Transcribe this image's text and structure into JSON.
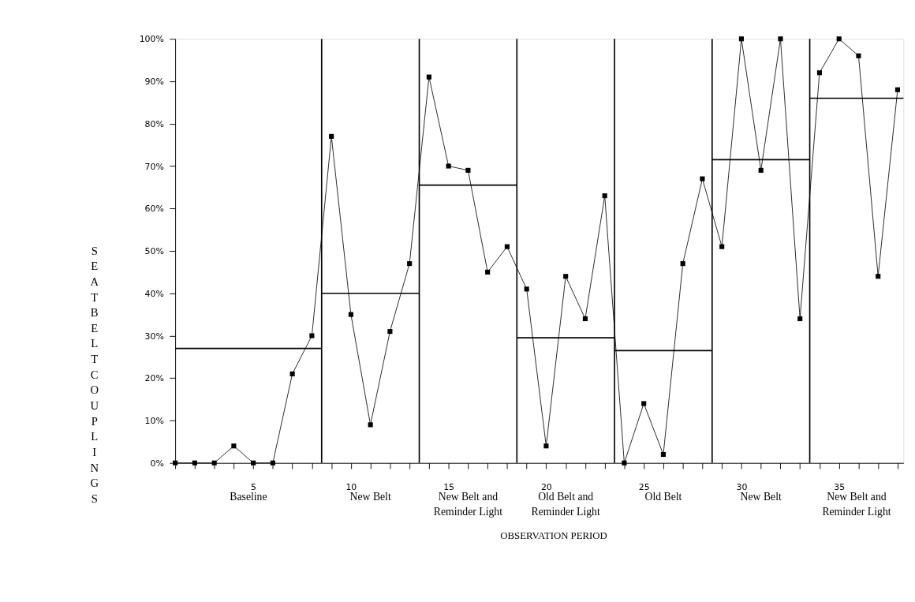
{
  "chart_data": {
    "type": "line",
    "xlabel": "OBSERVATION PERIOD",
    "ylabel": "SEATBELT COUPLINGS",
    "xlim": [
      1,
      38.3
    ],
    "xticks": [
      {
        "value": 1,
        "label": null
      },
      {
        "value": 2,
        "label": null
      },
      {
        "value": 3,
        "label": null
      },
      {
        "value": 4,
        "label": null
      },
      5,
      {
        "value": 6,
        "label": null
      },
      {
        "value": 7,
        "label": null
      },
      {
        "value": 8,
        "label": null
      },
      {
        "value": 9,
        "label": null
      },
      10,
      {
        "value": 11,
        "label": null
      },
      {
        "value": 12,
        "label": null
      },
      {
        "value": 13,
        "label": null
      },
      {
        "value": 14,
        "label": null
      },
      15,
      {
        "value": 16,
        "label": null
      },
      {
        "value": 17,
        "label": null
      },
      {
        "value": 18,
        "label": null
      },
      {
        "value": 19,
        "label": null
      },
      20,
      {
        "value": 21,
        "label": null
      },
      {
        "value": 22,
        "label": null
      },
      {
        "value": 23,
        "label": null
      },
      {
        "value": 24,
        "label": null
      },
      25,
      {
        "value": 26,
        "label": null
      },
      {
        "value": 27,
        "label": null
      },
      {
        "value": 28,
        "label": null
      },
      {
        "value": 29,
        "label": null
      },
      30,
      {
        "value": 31,
        "label": null
      },
      {
        "value": 32,
        "label": null
      },
      {
        "value": 33,
        "label": null
      },
      {
        "value": 34,
        "label": null
      },
      35,
      {
        "value": 36,
        "label": null
      },
      {
        "value": 37,
        "label": null
      },
      {
        "value": 38,
        "label": null
      }
    ],
    "ylim": [
      0,
      100
    ],
    "yticks": [
      {
        "value": 0,
        "label": "0%"
      },
      {
        "value": 10,
        "label": "10%"
      },
      {
        "value": 20,
        "label": "20%"
      },
      {
        "value": 30,
        "label": "30%"
      },
      {
        "value": 40,
        "label": "40%"
      },
      {
        "value": 50,
        "label": "50%"
      },
      {
        "value": 60,
        "label": "60%"
      },
      {
        "value": 70,
        "label": "70%"
      },
      {
        "value": 80,
        "label": "80%"
      },
      {
        "value": 90,
        "label": "90%"
      },
      {
        "value": 100,
        "label": "100%"
      }
    ],
    "grid": false,
    "x": [
      1,
      2,
      3,
      4,
      5,
      6,
      7,
      8,
      9,
      10,
      11,
      12,
      13,
      14,
      15,
      16,
      17,
      18,
      19,
      20,
      21,
      22,
      23,
      24,
      25,
      26,
      27,
      28,
      29,
      30,
      31,
      32,
      33,
      34,
      35,
      36,
      37,
      38
    ],
    "series": [
      {
        "color": "#000000",
        "marker": "square",
        "values": [
          0,
          0,
          0,
          4,
          0,
          0,
          21,
          30,
          77,
          35,
          9,
          31,
          47,
          91,
          70,
          69,
          45,
          51,
          41,
          4,
          44,
          34,
          63,
          0,
          14,
          2,
          47,
          67,
          51,
          100,
          69,
          100,
          34,
          92,
          100,
          96,
          44,
          88
        ]
      },
      {
        "type": "line",
        "color": "#000000",
        "marker": "none",
        "x": [
          1,
          8.5
        ],
        "values": [
          27,
          27
        ]
      },
      {
        "type": "line",
        "color": "#000000",
        "marker": "none",
        "x": [
          8.5,
          13.5
        ],
        "values": [
          40,
          40
        ]
      },
      {
        "type": "line",
        "color": "#000000",
        "marker": "none",
        "x": [
          13.5,
          18.5
        ],
        "values": [
          65.5,
          65.5
        ]
      },
      {
        "type": "line",
        "color": "#000000",
        "marker": "none",
        "x": [
          18.5,
          23.5
        ],
        "values": [
          29.5,
          29.5
        ]
      },
      {
        "type": "line",
        "color": "#000000",
        "marker": "none",
        "x": [
          23.5,
          28.5
        ],
        "values": [
          26.5,
          26.5
        ]
      },
      {
        "type": "line",
        "color": "#000000",
        "marker": "none",
        "x": [
          28.5,
          33.5
        ],
        "values": [
          71.5,
          71.5
        ]
      },
      {
        "type": "line",
        "color": "#000000",
        "marker": "none",
        "x": [
          33.5,
          38.3
        ],
        "values": [
          86,
          86
        ]
      }
    ],
    "ref_lines": [
      {
        "axis": "x",
        "value": 8.5,
        "color": "#000000"
      },
      {
        "axis": "x",
        "value": 13.5,
        "color": "#000000"
      },
      {
        "axis": "x",
        "value": 18.5,
        "color": "#000000"
      },
      {
        "axis": "x",
        "value": 23.5,
        "color": "#000000"
      },
      {
        "axis": "x",
        "value": 28.5,
        "color": "#000000"
      },
      {
        "axis": "x",
        "value": 33.5,
        "color": "#000000"
      }
    ],
    "annotations": [
      "Baseline",
      "New Belt",
      "New Belt and\nReminder Light",
      "Old Belt and\nReminder Light",
      "Old Belt",
      "New Belt",
      "New Belt and\nReminder Light"
    ]
  }
}
